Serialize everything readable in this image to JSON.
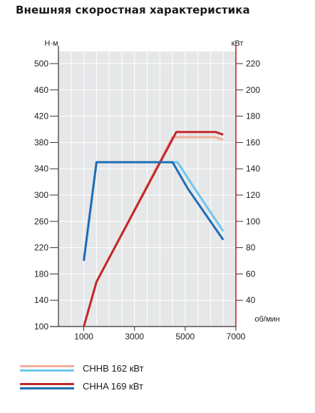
{
  "title": "Внешняя скоростная характеристика",
  "chart_data": {
    "type": "line",
    "left_axis": {
      "unit": "Н·м",
      "ticks": [
        100,
        140,
        180,
        220,
        260,
        300,
        340,
        380,
        420,
        460,
        500
      ],
      "range": [
        100,
        520
      ]
    },
    "right_axis": {
      "unit": "кВт",
      "ticks": [
        40,
        60,
        80,
        100,
        120,
        140,
        160,
        180,
        200,
        220
      ],
      "range": [
        20,
        230
      ]
    },
    "x_axis": {
      "unit": "об/мин",
      "ticks": [
        1000,
        3000,
        5000,
        7000
      ],
      "range": [
        0,
        7000
      ],
      "minor_grid_step": 500
    },
    "grid": true,
    "series": [
      {
        "name": "CHHB 162 кВт",
        "quantity": "power",
        "axis": "right",
        "color": "#f2b09c",
        "points": [
          [
            1000,
            20
          ],
          [
            1500,
            54
          ],
          [
            4500,
            164
          ],
          [
            6200,
            164
          ],
          [
            6500,
            162
          ]
        ]
      },
      {
        "name": "CHHB 162 кВт",
        "quantity": "torque",
        "axis": "left",
        "color": "#6ec8ec",
        "points": [
          [
            1000,
            200
          ],
          [
            1500,
            350
          ],
          [
            4700,
            350
          ],
          [
            5200,
            320
          ],
          [
            6500,
            245
          ]
        ]
      },
      {
        "name": "CHHA 169 кВт",
        "quantity": "power",
        "axis": "right",
        "color": "#c0282c",
        "points": [
          [
            1000,
            20
          ],
          [
            1500,
            54
          ],
          [
            4650,
            168
          ],
          [
            6200,
            168
          ],
          [
            6500,
            166
          ]
        ]
      },
      {
        "name": "CHHA 169 кВт",
        "quantity": "torque",
        "axis": "left",
        "color": "#1f6db5",
        "points": [
          [
            1000,
            200
          ],
          [
            1500,
            350
          ],
          [
            4500,
            350
          ],
          [
            5100,
            310
          ],
          [
            6500,
            232
          ]
        ]
      }
    ]
  },
  "legend": [
    {
      "label": "CHHB 162 кВт",
      "colors": [
        "#f2b09c",
        "#6ec8ec"
      ]
    },
    {
      "label": "CHHA 169 кВт",
      "colors": [
        "#c0282c",
        "#1f6db5"
      ]
    }
  ]
}
